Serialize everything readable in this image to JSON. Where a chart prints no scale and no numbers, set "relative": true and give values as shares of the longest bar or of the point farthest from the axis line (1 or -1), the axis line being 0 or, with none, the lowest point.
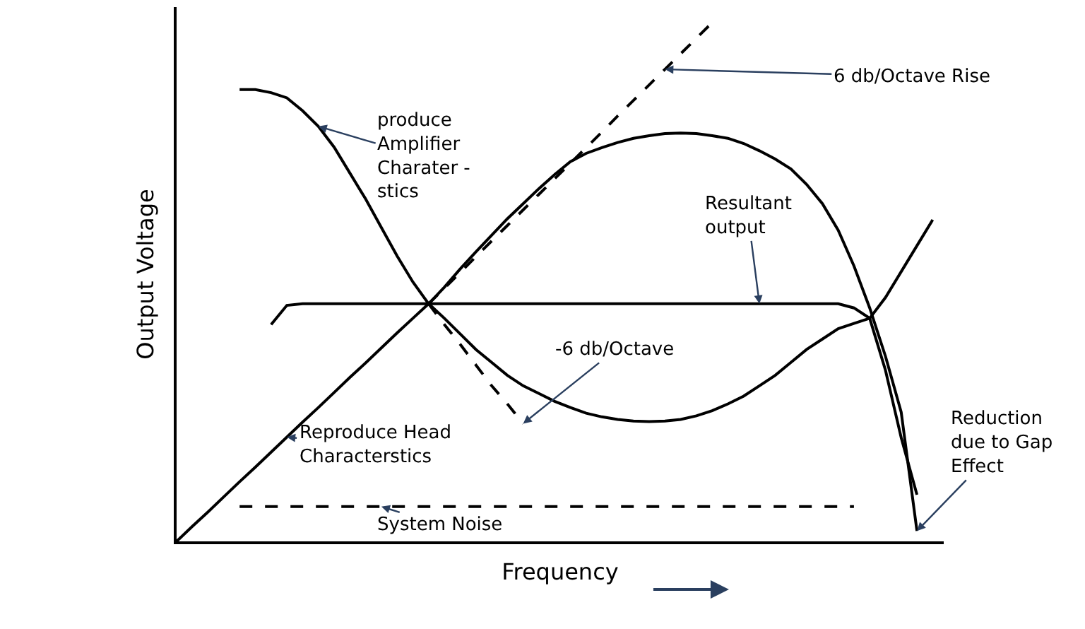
{
  "chart_data": {
    "type": "line",
    "relative": true,
    "xlabel": "Frequency",
    "ylabel": "Output Voltage",
    "legend": false,
    "categories": [
      null,
      null,
      null,
      null,
      null,
      null,
      null,
      null,
      null,
      null,
      null,
      null,
      null,
      null,
      null,
      null,
      null,
      null,
      null,
      null,
      null,
      null,
      null,
      null,
      null,
      null,
      null,
      null,
      null,
      null,
      null,
      null,
      null,
      null,
      null,
      null,
      null,
      null,
      null,
      null,
      null,
      null,
      null,
      null,
      null,
      null,
      null,
      null,
      null
    ],
    "series": [
      {
        "name": "Reproduce Head\nCharacterstics",
        "color": "#000000",
        "line_style": "solid",
        "values": [
          0,
          0.029,
          0.057,
          0.086,
          0.115,
          0.143,
          0.172,
          0.201,
          0.23,
          0.258,
          0.287,
          0.316,
          0.344,
          0.373,
          0.402,
          0.43,
          0.458,
          0.49,
          0.525,
          0.558,
          0.59,
          0.622,
          0.651,
          0.68,
          0.707,
          0.732,
          0.748,
          0.759,
          0.769,
          0.777,
          0.782,
          0.786,
          0.787,
          0.786,
          0.782,
          0.777,
          0.767,
          0.753,
          0.737,
          0.718,
          0.688,
          0.651,
          0.6,
          0.531,
          0.45,
          0.357,
          0.249,
          0.02,
          null
        ]
      },
      {
        "name": "6 db/Octave Rise",
        "color": "#000000",
        "line_style": "dashed",
        "values": [
          null,
          null,
          null,
          null,
          null,
          null,
          null,
          null,
          null,
          null,
          null,
          null,
          null,
          null,
          null,
          null,
          0.458,
          0.488,
          0.518,
          0.549,
          0.579,
          0.609,
          0.639,
          0.669,
          0.699,
          0.729,
          0.759,
          0.789,
          0.82,
          0.85,
          0.88,
          0.91,
          0.94,
          0.97,
          1.0,
          null,
          null,
          null,
          null,
          null,
          null,
          null,
          null,
          null,
          null,
          null,
          null,
          null,
          null
        ]
      },
      {
        "name": "produce\nAmplifier\nCharater -\nstics",
        "color": "#000000",
        "line_style": "solid",
        "values": [
          null,
          null,
          null,
          null,
          0.871,
          0.871,
          0.865,
          0.855,
          0.83,
          0.8,
          0.76,
          0.71,
          0.66,
          0.605,
          0.55,
          0.5,
          0.458,
          0.43,
          0.4,
          0.37,
          0.345,
          0.32,
          0.3,
          0.285,
          0.27,
          0.258,
          0.247,
          0.24,
          0.235,
          0.232,
          0.231,
          0.232,
          0.235,
          0.242,
          0.252,
          0.265,
          0.28,
          0.3,
          0.32,
          0.345,
          0.37,
          0.39,
          0.41,
          0.42,
          0.43,
          0.47,
          0.52,
          0.57,
          0.62
        ]
      },
      {
        "name": "Resultant\noutput",
        "color": "#000000",
        "line_style": "solid",
        "values": [
          null,
          null,
          null,
          null,
          null,
          null,
          0.418,
          0.455,
          0.458,
          0.458,
          0.458,
          0.458,
          0.458,
          0.458,
          0.458,
          0.458,
          0.458,
          0.458,
          0.458,
          0.458,
          0.458,
          0.458,
          0.458,
          0.458,
          0.458,
          0.458,
          0.458,
          0.458,
          0.458,
          0.458,
          0.458,
          0.458,
          0.458,
          0.458,
          0.458,
          0.458,
          0.458,
          0.458,
          0.458,
          0.458,
          0.458,
          0.458,
          0.458,
          0.45,
          0.43,
          0.33,
          0.2,
          0.09,
          null
        ]
      },
      {
        "name": "-6 db/Octave",
        "color": "#000000",
        "line_style": "dashed",
        "values": [
          null,
          null,
          null,
          null,
          null,
          null,
          null,
          null,
          null,
          null,
          null,
          null,
          null,
          null,
          null,
          null,
          0.458,
          0.418,
          0.38,
          0.34,
          0.3,
          0.265,
          0.227,
          null,
          null,
          null,
          null,
          null,
          null,
          null,
          null,
          null,
          null,
          null,
          null,
          null,
          null,
          null,
          null,
          null,
          null,
          null,
          null,
          null,
          null,
          null,
          null,
          null,
          null
        ]
      },
      {
        "name": "System Noise",
        "color": "#000000",
        "line_style": "dashed",
        "values": [
          null,
          null,
          null,
          null,
          0.067,
          0.067,
          0.067,
          0.067,
          0.067,
          0.067,
          0.067,
          0.067,
          0.067,
          0.067,
          0.067,
          0.067,
          0.067,
          0.067,
          0.067,
          0.067,
          0.067,
          0.067,
          0.067,
          0.067,
          0.067,
          0.067,
          0.067,
          0.067,
          0.067,
          0.067,
          0.067,
          0.067,
          0.067,
          0.067,
          0.067,
          0.067,
          0.067,
          0.067,
          0.067,
          0.067,
          0.067,
          0.067,
          0.067,
          0.067,
          null,
          null,
          null,
          null,
          null
        ]
      }
    ],
    "annotations": [
      "Reduction\ndue to Gap\nEffect"
    ]
  }
}
